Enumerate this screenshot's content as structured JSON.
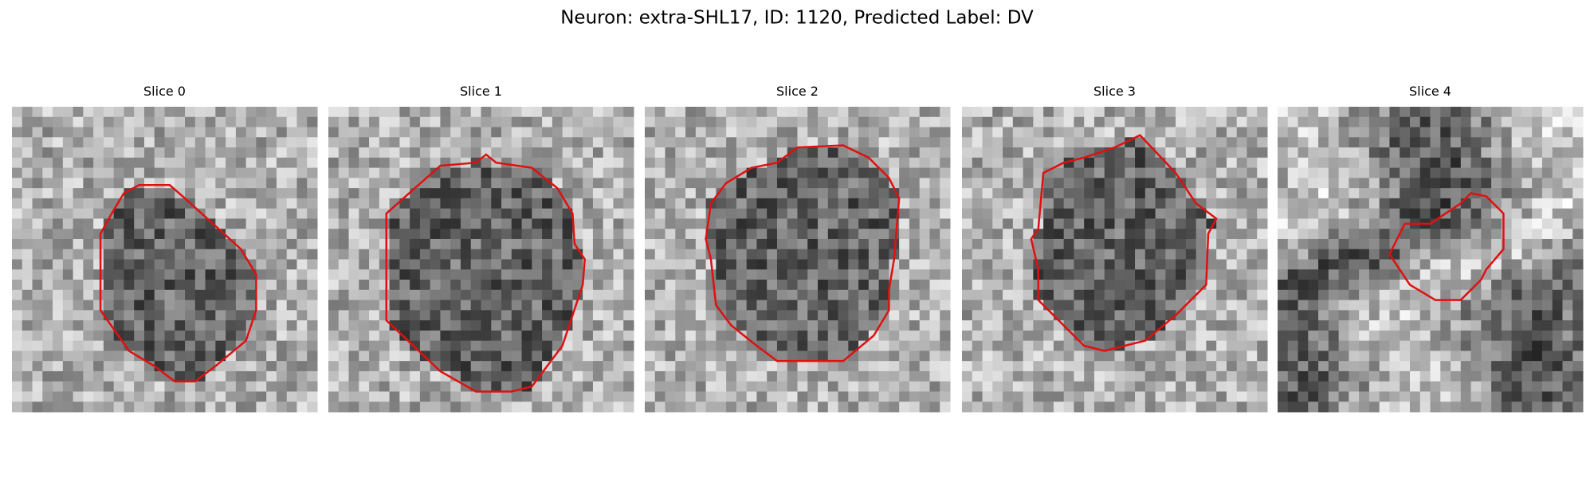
{
  "title": "Neuron: extra-SHL17, ID: 1120, Predicted Label: DV",
  "slices": [
    {
      "title": "Slice 0"
    },
    {
      "title": "Slice 1"
    },
    {
      "title": "Slice 2"
    },
    {
      "title": "Slice 3"
    },
    {
      "title": "Slice 4"
    }
  ]
}
